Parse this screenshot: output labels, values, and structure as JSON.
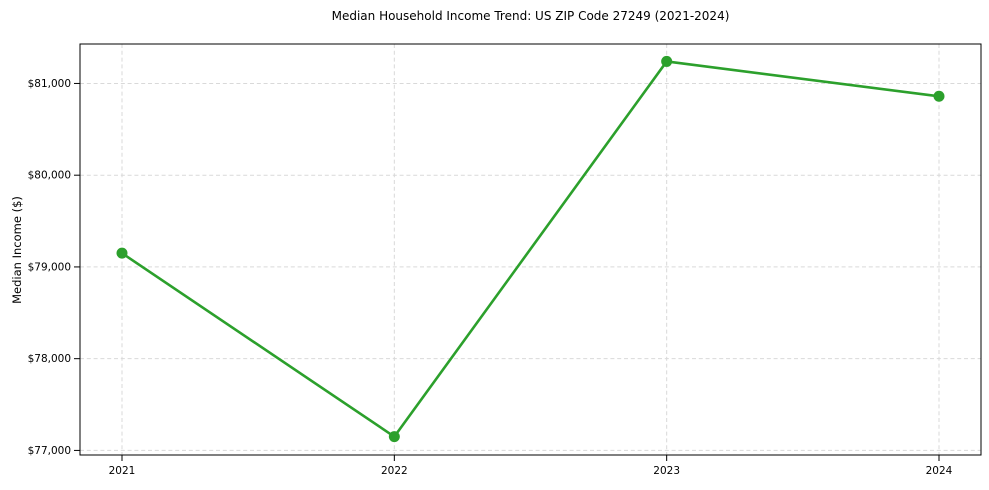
{
  "chart_data": {
    "type": "line",
    "title": "Median Household Income Trend: US ZIP Code 27249 (2021-2024)",
    "ylabel": "Median Income ($)",
    "xlabel": "",
    "categories": [
      "2021",
      "2022",
      "2023",
      "2024"
    ],
    "values": [
      79150,
      77150,
      81240,
      80860
    ],
    "ylim": [
      76950,
      81430
    ],
    "yticks": [
      {
        "value": 77000,
        "label": "$77,000"
      },
      {
        "value": 78000,
        "label": "$78,000"
      },
      {
        "value": 79000,
        "label": "$79,000"
      },
      {
        "value": 80000,
        "label": "$80,000"
      },
      {
        "value": 81000,
        "label": "$81,000"
      }
    ],
    "grid": {
      "visible": true,
      "style": "dashed"
    },
    "legend_position": "none",
    "line_color": "#2ca02c",
    "marker": "circle",
    "background_color": "#ffffff",
    "grid_color": "#d9d9d9",
    "axis_color": "#000000",
    "text_color": "#000000"
  }
}
